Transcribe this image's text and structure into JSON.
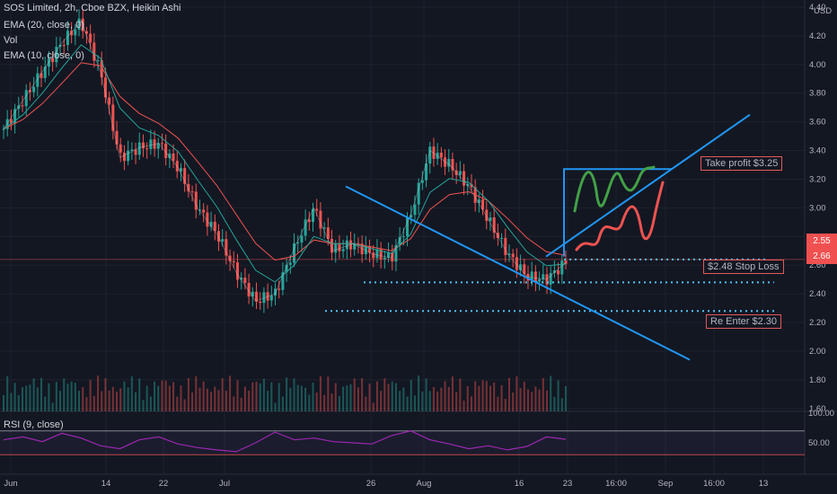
{
  "legend": {
    "title": "SOS Limited, 2h, Cboe BZX, Heikin Ashi",
    "ema20": "EMA (20, close, 0)",
    "vol": "Vol",
    "ema10": "EMA (10, close, 0)",
    "rsi": "RSI (9, close)"
  },
  "annotations": {
    "take_profit": "Take profit $3.25",
    "stop_loss": "$2.48 Stop Loss",
    "re_enter": "Re Enter $2.30"
  },
  "currency": "USD",
  "price_badge": [
    "2.55",
    "2.66"
  ],
  "colors": {
    "bg": "#131722",
    "up": "#26a69a",
    "down": "#ef5350",
    "trend": "#2196f3",
    "ema20": "#ef5350",
    "ema10": "#26a69a",
    "rsi": "#9c27b0",
    "dotted": "#4fc3f7",
    "badge": "#f05050"
  },
  "chart_data": [
    {
      "type": "line",
      "title": "",
      "x_ticks": [
        "Jun",
        "14",
        "22",
        "Jul",
        "26",
        "Aug",
        "16",
        "23",
        "16:00",
        "Sep",
        "16:00",
        "13"
      ],
      "y_ticks": [
        4.4,
        4.2,
        4.0,
        3.8,
        3.6,
        3.4,
        3.2,
        3.0,
        2.8,
        2.6,
        2.4,
        2.2,
        2.0,
        1.8,
        1.6
      ],
      "ylim": [
        1.58,
        4.45
      ],
      "x": [
        "Jun 1",
        "Jun 5",
        "Jun 9",
        "Jun 13",
        "Jun 14",
        "Jun 17",
        "Jun 22",
        "Jun 25",
        "Jun 28",
        "Jul 1",
        "Jul 6",
        "Jul 11",
        "Jul 16",
        "Jul 19",
        "Jul 21",
        "Jul 22",
        "Jul 24",
        "Jul 26",
        "Jul 28",
        "Jul 31",
        "Aug 3",
        "Aug 6",
        "Aug 9",
        "Aug 10",
        "Aug 12",
        "Aug 14",
        "Aug 16",
        "Aug 18",
        "Aug 20",
        "Aug 23"
      ],
      "series": [
        {
          "values": [
            3.55,
            3.75,
            3.95,
            4.15,
            4.3,
            3.95,
            3.35,
            3.42,
            3.45,
            3.28,
            3.0,
            2.82,
            2.55,
            2.35,
            2.4,
            2.72,
            3.0,
            2.7,
            2.75,
            2.68,
            2.65,
            2.95,
            3.4,
            3.3,
            3.15,
            2.92,
            2.68,
            2.52,
            2.5,
            2.62
          ]
        }
      ],
      "annotation_levels": {
        "take_profit": 3.25,
        "stop_loss": 2.48,
        "re_enter": 2.3
      },
      "grid": true,
      "legend": "top-left"
    },
    {
      "type": "line",
      "title": "",
      "ylabel": "",
      "y_ticks": [
        100.0,
        50.0
      ],
      "ylim": [
        0,
        100
      ],
      "levels": [
        70,
        30
      ],
      "series": [
        {
          "values": [
            55,
            60,
            52,
            66,
            58,
            45,
            40,
            55,
            60,
            48,
            42,
            38,
            35,
            50,
            68,
            55,
            58,
            52,
            50,
            48,
            62,
            70,
            55,
            48,
            40,
            45,
            38,
            44,
            60,
            56
          ]
        }
      ]
    }
  ]
}
